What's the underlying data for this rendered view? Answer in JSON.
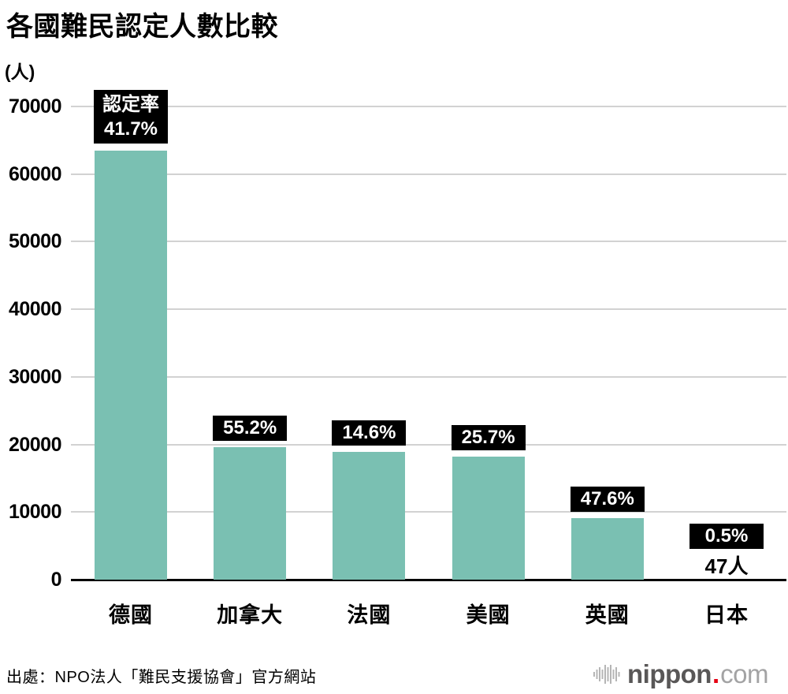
{
  "title": "各國難民認定人數比較",
  "source": "出處：NPO法人「難民支援協會」官方網站",
  "logo": {
    "icon": "soundwave-icon",
    "name": "nippon",
    "dot": ".",
    "tld": "com"
  },
  "colors": {
    "bar": "#7ac0b2",
    "grid": "#d2d2d2",
    "axis": "#000000",
    "badge_bg": "#000000",
    "badge_fg": "#ffffff",
    "logo_dark": "#595757",
    "logo_light": "#a3a3a4",
    "logo_red": "#e60012"
  },
  "chart_data": {
    "type": "bar",
    "title": "各國難民認定人數比較",
    "ylabel": "(人)",
    "categories": [
      "德國",
      "加拿大",
      "法國",
      "美國",
      "英國",
      "日本"
    ],
    "values": [
      63456,
      19596,
      18868,
      18177,
      9108,
      47
    ],
    "rate_label_prefix": "認定率",
    "recognition_rates": [
      "41.7%",
      "55.2%",
      "14.6%",
      "25.7%",
      "47.6%",
      "0.5%"
    ],
    "value_annotations": [
      null,
      null,
      null,
      null,
      null,
      "47人"
    ],
    "yticks": [
      0,
      10000,
      20000,
      30000,
      40000,
      50000,
      60000,
      70000
    ],
    "ylim": [
      0,
      70000
    ],
    "grid": true,
    "legend": false,
    "bar_color": "#7ac0b2"
  }
}
